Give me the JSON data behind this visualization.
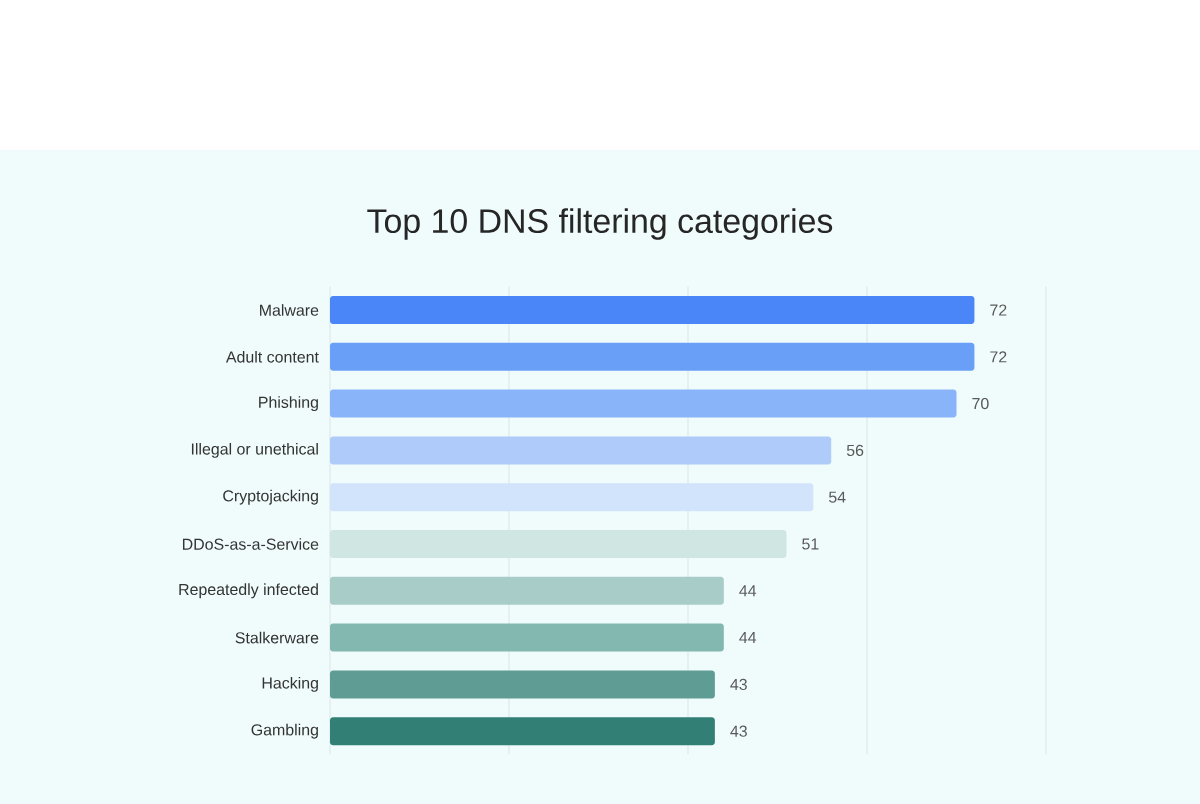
{
  "chart_data": {
    "type": "bar",
    "orientation": "horizontal",
    "title": "Top 10 DNS filtering categories",
    "categories": [
      "Malware",
      "Adult content",
      "Phishing",
      "Illegal or unethical",
      "Cryptojacking",
      "DDoS-as-a-Service",
      "Repeatedly infected",
      "Stalkerware",
      "Hacking",
      "Gambling"
    ],
    "values": [
      72,
      72,
      70,
      56,
      54,
      51,
      44,
      44,
      43,
      43
    ],
    "colors": [
      "#4a86f7",
      "#6a9ff8",
      "#8ab4fa",
      "#aecbfa",
      "#d2e3fc",
      "#cfe6e2",
      "#a8ccc8",
      "#82b8b0",
      "#5e9c94",
      "#327f76"
    ],
    "xlim": [
      0,
      80
    ],
    "xticks": [
      {
        "value": 0,
        "label": null
      },
      {
        "value": 20,
        "label": null
      },
      {
        "value": 40,
        "label": null
      },
      {
        "value": 60,
        "label": null
      },
      {
        "value": 80,
        "label": null
      }
    ],
    "grid": "x",
    "tick_labels": "y",
    "data_labels": true
  }
}
